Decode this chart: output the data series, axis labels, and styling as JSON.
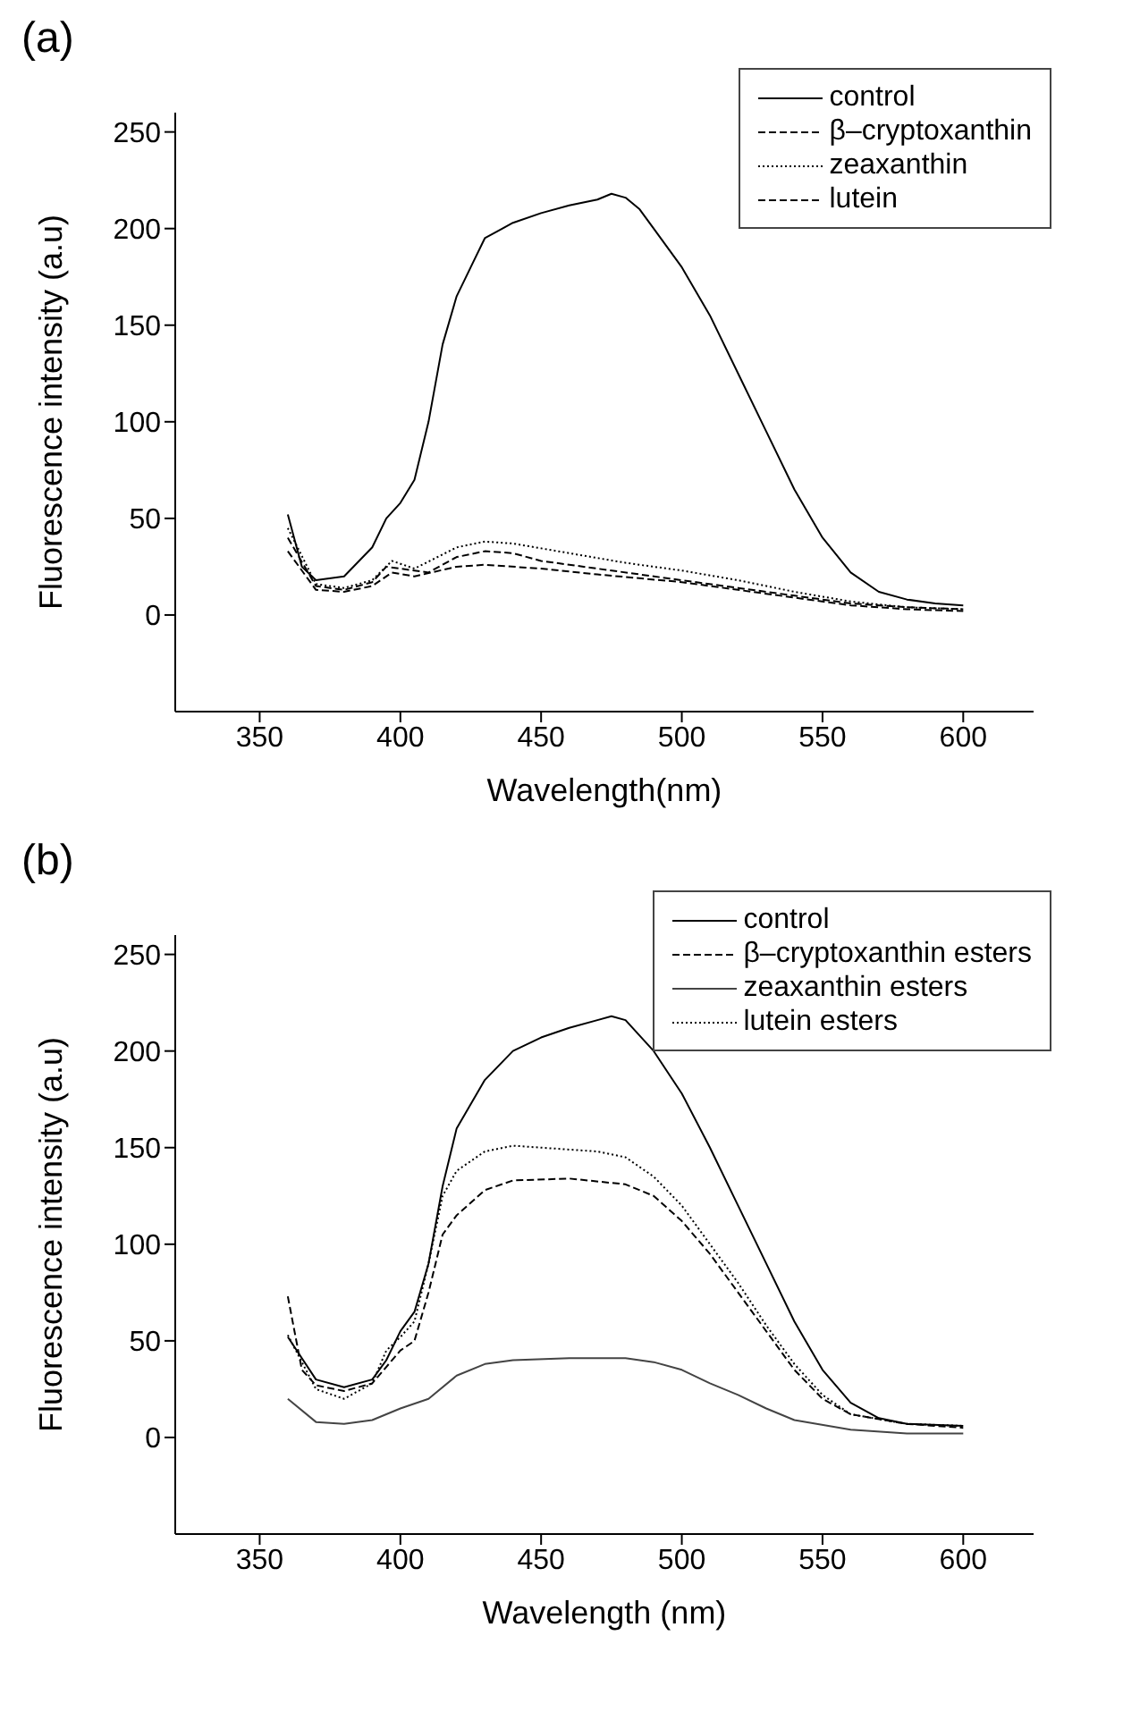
{
  "chart_data": [
    {
      "type": "line",
      "title": "(a)",
      "xlabel": "Wavelength(nm)",
      "ylabel": "Fluorescence intensity (a.u)",
      "xlim": [
        320,
        625
      ],
      "xticks": [
        350,
        400,
        450,
        500,
        550,
        600
      ],
      "ylim": [
        -50,
        260
      ],
      "yticks": [
        0,
        50,
        100,
        150,
        200,
        250
      ],
      "legend": "top right",
      "marker": "none",
      "series": [
        {
          "name": "control",
          "color": "#000000",
          "line_style": "solid",
          "x": [
            360,
            365,
            370,
            380,
            390,
            395,
            400,
            405,
            410,
            415,
            420,
            425,
            430,
            440,
            450,
            460,
            470,
            475,
            480,
            485,
            490,
            500,
            510,
            520,
            530,
            540,
            550,
            560,
            570,
            580,
            590,
            600
          ],
          "values": [
            52,
            25,
            18,
            20,
            35,
            50,
            58,
            70,
            100,
            140,
            165,
            180,
            195,
            203,
            208,
            212,
            215,
            218,
            216,
            210,
            200,
            180,
            155,
            125,
            95,
            65,
            40,
            22,
            12,
            8,
            6,
            5
          ]
        },
        {
          "name": "β–cryptoxanthin",
          "color": "#000000",
          "line_style": "dashed",
          "x": [
            360,
            370,
            380,
            390,
            395,
            400,
            410,
            420,
            430,
            440,
            450,
            470,
            500,
            520,
            540,
            560,
            580,
            600
          ],
          "values": [
            40,
            15,
            13,
            17,
            25,
            24,
            22,
            30,
            33,
            32,
            28,
            24,
            18,
            14,
            10,
            6,
            4,
            3
          ]
        },
        {
          "name": "zeaxanthin",
          "color": "#000000",
          "line_style": "dotted",
          "x": [
            360,
            370,
            380,
            390,
            397,
            405,
            420,
            430,
            440,
            460,
            480,
            500,
            520,
            540,
            560,
            580,
            600
          ],
          "values": [
            45,
            16,
            14,
            18,
            28,
            24,
            35,
            38,
            37,
            32,
            27,
            23,
            18,
            12,
            7,
            4,
            3
          ]
        },
        {
          "name": "lutein",
          "color": "#000000",
          "line_style": "dashed",
          "x": [
            360,
            370,
            380,
            390,
            397,
            405,
            420,
            430,
            450,
            470,
            500,
            520,
            540,
            560,
            580,
            600
          ],
          "values": [
            33,
            13,
            12,
            15,
            22,
            20,
            25,
            26,
            24,
            21,
            17,
            13,
            9,
            5,
            3,
            2
          ]
        }
      ]
    },
    {
      "type": "line",
      "title": "(b)",
      "xlabel": "Wavelength (nm)",
      "ylabel": "Fluorescence intensity (a.u)",
      "xlim": [
        320,
        625
      ],
      "xticks": [
        350,
        400,
        450,
        500,
        550,
        600
      ],
      "ylim": [
        -50,
        260
      ],
      "yticks": [
        0,
        50,
        100,
        150,
        200,
        250
      ],
      "legend": "top right",
      "marker": "none",
      "series": [
        {
          "name": "control",
          "color": "#000000",
          "line_style": "solid",
          "x": [
            360,
            370,
            380,
            390,
            395,
            400,
            405,
            410,
            415,
            420,
            430,
            440,
            450,
            460,
            470,
            475,
            480,
            490,
            500,
            510,
            520,
            530,
            540,
            550,
            560,
            570,
            580,
            600
          ],
          "values": [
            52,
            30,
            26,
            30,
            40,
            55,
            65,
            90,
            130,
            160,
            185,
            200,
            207,
            212,
            216,
            218,
            216,
            200,
            178,
            150,
            120,
            90,
            60,
            35,
            18,
            10,
            7,
            6
          ]
        },
        {
          "name": "β–cryptoxanthin esters",
          "color": "#000000",
          "line_style": "dashed",
          "x": [
            360,
            365,
            370,
            380,
            390,
            400,
            405,
            410,
            415,
            420,
            430,
            440,
            460,
            480,
            490,
            500,
            510,
            520,
            530,
            540,
            550,
            560,
            580,
            600
          ],
          "values": [
            73,
            35,
            27,
            24,
            28,
            45,
            50,
            75,
            105,
            115,
            128,
            133,
            134,
            131,
            125,
            112,
            95,
            75,
            55,
            35,
            20,
            12,
            7,
            5
          ]
        },
        {
          "name": "zeaxanthin esters",
          "color": "#444444",
          "line_style": "solid",
          "x": [
            360,
            370,
            380,
            390,
            400,
            410,
            420,
            430,
            440,
            460,
            480,
            490,
            500,
            510,
            520,
            530,
            540,
            560,
            580,
            600
          ],
          "values": [
            20,
            8,
            7,
            9,
            15,
            20,
            32,
            38,
            40,
            41,
            41,
            39,
            35,
            28,
            22,
            15,
            9,
            4,
            2,
            2
          ]
        },
        {
          "name": "lutein esters",
          "color": "#000000",
          "line_style": "dotted",
          "x": [
            360,
            370,
            380,
            390,
            395,
            400,
            405,
            410,
            415,
            420,
            430,
            440,
            460,
            470,
            480,
            490,
            500,
            510,
            520,
            530,
            540,
            550,
            560,
            580,
            600
          ],
          "values": [
            53,
            25,
            20,
            28,
            45,
            52,
            60,
            90,
            125,
            138,
            148,
            151,
            149,
            148,
            145,
            135,
            120,
            100,
            80,
            58,
            38,
            22,
            12,
            7,
            6
          ]
        }
      ]
    }
  ]
}
